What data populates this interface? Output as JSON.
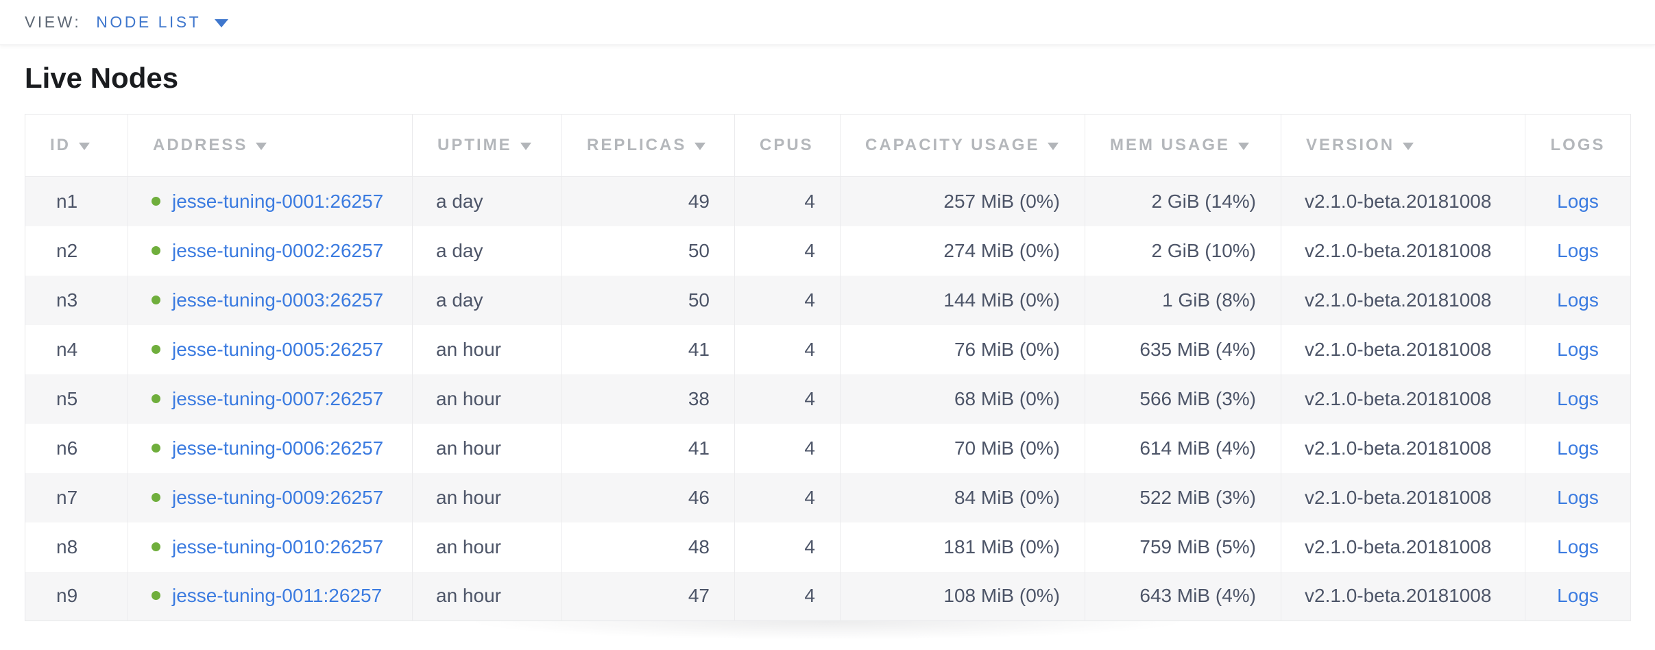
{
  "view_bar": {
    "label": "VIEW:",
    "selected": "NODE LIST",
    "caret_icon": "caret-down-icon",
    "accent_blue": "#3f77cd"
  },
  "page": {
    "title": "Live Nodes"
  },
  "colors": {
    "link_blue": "#3b7be0",
    "live_dot_green": "#6fae3c",
    "header_gray": "#b4b7bb",
    "body_text": "#4d5568",
    "row_stripe": "#f6f6f7",
    "grid_border": "#ebebed"
  },
  "table": {
    "columns": [
      {
        "key": "id",
        "label": "ID",
        "sortable": true,
        "align": "left"
      },
      {
        "key": "address",
        "label": "ADDRESS",
        "sortable": true,
        "align": "left"
      },
      {
        "key": "uptime",
        "label": "UPTIME",
        "sortable": true,
        "align": "left"
      },
      {
        "key": "replicas",
        "label": "REPLICAS",
        "sortable": true,
        "align": "right"
      },
      {
        "key": "cpus",
        "label": "CPUS",
        "sortable": false,
        "align": "right"
      },
      {
        "key": "capacity",
        "label": "CAPACITY USAGE",
        "sortable": true,
        "align": "right"
      },
      {
        "key": "mem",
        "label": "MEM USAGE",
        "sortable": true,
        "align": "right"
      },
      {
        "key": "version",
        "label": "VERSION",
        "sortable": true,
        "align": "left"
      },
      {
        "key": "logs",
        "label": "LOGS",
        "sortable": false,
        "align": "center"
      }
    ],
    "rows": [
      {
        "id": "n1",
        "status": "live",
        "address": "jesse-tuning-0001:26257",
        "uptime": "a day",
        "replicas": "49",
        "cpus": "4",
        "capacity": "257 MiB (0%)",
        "mem": "2 GiB (14%)",
        "version": "v2.1.0-beta.20181008",
        "logs": "Logs"
      },
      {
        "id": "n2",
        "status": "live",
        "address": "jesse-tuning-0002:26257",
        "uptime": "a day",
        "replicas": "50",
        "cpus": "4",
        "capacity": "274 MiB (0%)",
        "mem": "2 GiB (10%)",
        "version": "v2.1.0-beta.20181008",
        "logs": "Logs"
      },
      {
        "id": "n3",
        "status": "live",
        "address": "jesse-tuning-0003:26257",
        "uptime": "a day",
        "replicas": "50",
        "cpus": "4",
        "capacity": "144 MiB (0%)",
        "mem": "1 GiB (8%)",
        "version": "v2.1.0-beta.20181008",
        "logs": "Logs"
      },
      {
        "id": "n4",
        "status": "live",
        "address": "jesse-tuning-0005:26257",
        "uptime": "an hour",
        "replicas": "41",
        "cpus": "4",
        "capacity": "76 MiB (0%)",
        "mem": "635 MiB (4%)",
        "version": "v2.1.0-beta.20181008",
        "logs": "Logs"
      },
      {
        "id": "n5",
        "status": "live",
        "address": "jesse-tuning-0007:26257",
        "uptime": "an hour",
        "replicas": "38",
        "cpus": "4",
        "capacity": "68 MiB (0%)",
        "mem": "566 MiB (3%)",
        "version": "v2.1.0-beta.20181008",
        "logs": "Logs"
      },
      {
        "id": "n6",
        "status": "live",
        "address": "jesse-tuning-0006:26257",
        "uptime": "an hour",
        "replicas": "41",
        "cpus": "4",
        "capacity": "70 MiB (0%)",
        "mem": "614 MiB (4%)",
        "version": "v2.1.0-beta.20181008",
        "logs": "Logs"
      },
      {
        "id": "n7",
        "status": "live",
        "address": "jesse-tuning-0009:26257",
        "uptime": "an hour",
        "replicas": "46",
        "cpus": "4",
        "capacity": "84 MiB (0%)",
        "mem": "522 MiB (3%)",
        "version": "v2.1.0-beta.20181008",
        "logs": "Logs"
      },
      {
        "id": "n8",
        "status": "live",
        "address": "jesse-tuning-0010:26257",
        "uptime": "an hour",
        "replicas": "48",
        "cpus": "4",
        "capacity": "181 MiB (0%)",
        "mem": "759 MiB (5%)",
        "version": "v2.1.0-beta.20181008",
        "logs": "Logs"
      },
      {
        "id": "n9",
        "status": "live",
        "address": "jesse-tuning-0011:26257",
        "uptime": "an hour",
        "replicas": "47",
        "cpus": "4",
        "capacity": "108 MiB (0%)",
        "mem": "643 MiB (4%)",
        "version": "v2.1.0-beta.20181008",
        "logs": "Logs"
      }
    ]
  }
}
